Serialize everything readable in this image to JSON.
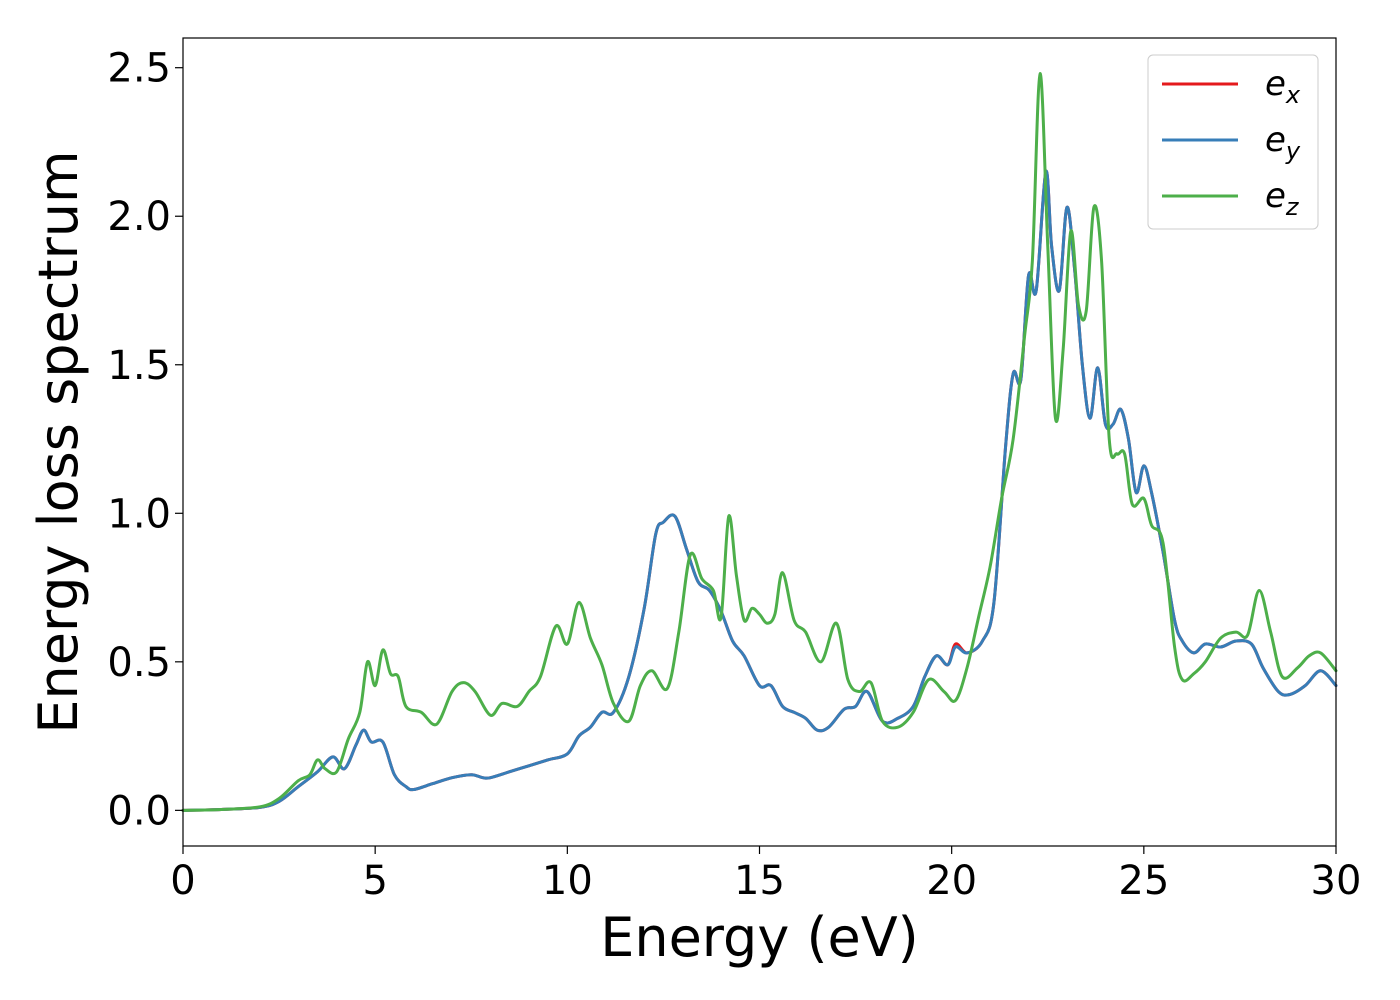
{
  "chart_data": {
    "type": "line",
    "title": "",
    "xlabel": "Energy (eV)",
    "ylabel": "Energy loss spectrum",
    "xlim": [
      0,
      30
    ],
    "ylim": [
      -0.12,
      2.6
    ],
    "xticks": [
      0,
      5,
      10,
      15,
      20,
      25,
      30
    ],
    "xtick_labels": [
      "0",
      "5",
      "10",
      "15",
      "20",
      "25",
      "30"
    ],
    "yticks": [
      0.0,
      0.5,
      1.0,
      1.5,
      2.0,
      2.5
    ],
    "ytick_labels": [
      "0.0",
      "0.5",
      "1.0",
      "1.5",
      "2.0",
      "2.5"
    ],
    "grid": false,
    "legend_position": "top-right",
    "series": [
      {
        "name": "e",
        "subscript": "x",
        "color": "#e41a1c",
        "x": [
          0,
          1,
          2,
          2.5,
          3,
          3.5,
          3.9,
          4.2,
          4.5,
          4.7,
          4.9,
          5.2,
          5.5,
          5.8,
          6.0,
          6.5,
          7.0,
          7.5,
          7.8,
          8.0,
          8.5,
          9.0,
          9.5,
          10.0,
          10.3,
          10.6,
          10.9,
          11.2,
          11.6,
          12.0,
          12.3,
          12.5,
          12.8,
          13.1,
          13.4,
          13.7,
          14.0,
          14.3,
          14.6,
          15.0,
          15.3,
          15.6,
          15.9,
          16.2,
          16.5,
          16.8,
          17.2,
          17.5,
          17.8,
          18.2,
          18.6,
          19.0,
          19.3,
          19.6,
          19.9,
          20.1,
          20.4,
          20.8,
          21.1,
          21.4,
          21.6,
          21.8,
          22.0,
          22.2,
          22.45,
          22.6,
          22.8,
          23.0,
          23.2,
          23.4,
          23.6,
          23.8,
          24.0,
          24.2,
          24.4,
          24.6,
          24.8,
          25.0,
          25.2,
          25.5,
          25.8,
          26.0,
          26.3,
          26.6,
          27.0,
          27.4,
          27.8,
          28.1,
          28.5,
          28.8,
          29.2,
          29.6,
          30.0
        ],
        "y": [
          0.0,
          0.003,
          0.01,
          0.03,
          0.08,
          0.13,
          0.18,
          0.14,
          0.22,
          0.27,
          0.23,
          0.23,
          0.12,
          0.08,
          0.07,
          0.09,
          0.11,
          0.12,
          0.11,
          0.11,
          0.13,
          0.15,
          0.17,
          0.19,
          0.25,
          0.28,
          0.33,
          0.33,
          0.45,
          0.68,
          0.93,
          0.97,
          0.99,
          0.88,
          0.77,
          0.74,
          0.67,
          0.57,
          0.52,
          0.42,
          0.42,
          0.35,
          0.33,
          0.31,
          0.27,
          0.28,
          0.34,
          0.35,
          0.4,
          0.3,
          0.31,
          0.35,
          0.45,
          0.52,
          0.49,
          0.56,
          0.53,
          0.57,
          0.7,
          1.22,
          1.47,
          1.45,
          1.8,
          1.75,
          2.15,
          1.9,
          1.75,
          2.03,
          1.82,
          1.5,
          1.32,
          1.49,
          1.3,
          1.3,
          1.35,
          1.25,
          1.07,
          1.16,
          1.07,
          0.87,
          0.64,
          0.57,
          0.53,
          0.56,
          0.55,
          0.57,
          0.56,
          0.48,
          0.4,
          0.39,
          0.42,
          0.47,
          0.42
        ]
      },
      {
        "name": "e",
        "subscript": "y",
        "color": "#377eb8",
        "x": [
          0,
          1,
          2,
          2.5,
          3,
          3.5,
          3.9,
          4.2,
          4.5,
          4.7,
          4.9,
          5.2,
          5.5,
          5.8,
          6.0,
          6.5,
          7.0,
          7.5,
          7.8,
          8.0,
          8.5,
          9.0,
          9.5,
          10.0,
          10.3,
          10.6,
          10.9,
          11.2,
          11.6,
          12.0,
          12.3,
          12.5,
          12.8,
          13.1,
          13.4,
          13.7,
          14.0,
          14.3,
          14.6,
          15.0,
          15.3,
          15.6,
          15.9,
          16.2,
          16.5,
          16.8,
          17.2,
          17.5,
          17.8,
          18.2,
          18.6,
          19.0,
          19.3,
          19.6,
          19.9,
          20.1,
          20.4,
          20.8,
          21.1,
          21.4,
          21.6,
          21.8,
          22.0,
          22.2,
          22.45,
          22.6,
          22.8,
          23.0,
          23.2,
          23.4,
          23.6,
          23.8,
          24.0,
          24.2,
          24.4,
          24.6,
          24.8,
          25.0,
          25.2,
          25.5,
          25.8,
          26.0,
          26.3,
          26.6,
          27.0,
          27.4,
          27.8,
          28.1,
          28.5,
          28.8,
          29.2,
          29.6,
          30.0
        ],
        "y": [
          0.0,
          0.003,
          0.01,
          0.03,
          0.08,
          0.13,
          0.18,
          0.14,
          0.22,
          0.27,
          0.23,
          0.23,
          0.12,
          0.08,
          0.07,
          0.09,
          0.11,
          0.12,
          0.11,
          0.11,
          0.13,
          0.15,
          0.17,
          0.19,
          0.25,
          0.28,
          0.33,
          0.33,
          0.45,
          0.68,
          0.93,
          0.97,
          0.99,
          0.88,
          0.77,
          0.74,
          0.67,
          0.57,
          0.52,
          0.42,
          0.42,
          0.35,
          0.33,
          0.31,
          0.27,
          0.28,
          0.34,
          0.35,
          0.4,
          0.3,
          0.31,
          0.35,
          0.45,
          0.52,
          0.49,
          0.55,
          0.53,
          0.57,
          0.7,
          1.22,
          1.47,
          1.45,
          1.8,
          1.75,
          2.15,
          1.9,
          1.75,
          2.03,
          1.82,
          1.5,
          1.32,
          1.49,
          1.3,
          1.3,
          1.35,
          1.25,
          1.07,
          1.16,
          1.07,
          0.87,
          0.64,
          0.57,
          0.53,
          0.56,
          0.55,
          0.57,
          0.56,
          0.48,
          0.4,
          0.39,
          0.42,
          0.47,
          0.42
        ]
      },
      {
        "name": "e",
        "subscript": "z",
        "color": "#4daf4a",
        "x": [
          0,
          1,
          2,
          2.5,
          3.0,
          3.3,
          3.5,
          3.7,
          4.0,
          4.3,
          4.6,
          4.8,
          5.0,
          5.2,
          5.4,
          5.6,
          5.8,
          6.2,
          6.6,
          7.0,
          7.3,
          7.6,
          8.0,
          8.3,
          8.7,
          9.0,
          9.3,
          9.7,
          10.0,
          10.3,
          10.6,
          10.9,
          11.2,
          11.6,
          11.9,
          12.2,
          12.6,
          12.9,
          13.2,
          13.5,
          13.8,
          14.0,
          14.2,
          14.4,
          14.6,
          14.8,
          15.0,
          15.2,
          15.4,
          15.6,
          15.9,
          16.2,
          16.6,
          17.0,
          17.3,
          17.6,
          17.9,
          18.2,
          18.6,
          19.0,
          19.4,
          19.8,
          20.1,
          20.4,
          20.7,
          21.0,
          21.3,
          21.6,
          21.9,
          22.1,
          22.3,
          22.5,
          22.7,
          22.9,
          23.1,
          23.3,
          23.5,
          23.7,
          23.9,
          24.1,
          24.3,
          24.5,
          24.7,
          25.0,
          25.2,
          25.5,
          25.8,
          26.0,
          26.3,
          26.6,
          27.0,
          27.4,
          27.7,
          28.0,
          28.3,
          28.6,
          29.0,
          29.3,
          29.6,
          30.0
        ],
        "y": [
          0.0,
          0.003,
          0.012,
          0.04,
          0.1,
          0.12,
          0.17,
          0.14,
          0.13,
          0.24,
          0.33,
          0.5,
          0.42,
          0.54,
          0.46,
          0.45,
          0.35,
          0.33,
          0.29,
          0.4,
          0.43,
          0.4,
          0.32,
          0.36,
          0.35,
          0.4,
          0.45,
          0.62,
          0.56,
          0.7,
          0.58,
          0.49,
          0.36,
          0.3,
          0.42,
          0.47,
          0.41,
          0.6,
          0.86,
          0.78,
          0.74,
          0.65,
          0.99,
          0.79,
          0.64,
          0.68,
          0.66,
          0.63,
          0.66,
          0.8,
          0.64,
          0.6,
          0.5,
          0.63,
          0.44,
          0.4,
          0.43,
          0.3,
          0.28,
          0.33,
          0.44,
          0.4,
          0.37,
          0.48,
          0.65,
          0.82,
          1.05,
          1.25,
          1.6,
          1.85,
          2.48,
          1.9,
          1.32,
          1.55,
          1.95,
          1.7,
          1.68,
          2.03,
          1.85,
          1.25,
          1.2,
          1.2,
          1.03,
          1.05,
          0.96,
          0.9,
          0.55,
          0.44,
          0.46,
          0.5,
          0.58,
          0.6,
          0.59,
          0.74,
          0.6,
          0.45,
          0.48,
          0.52,
          0.53,
          0.47
        ]
      }
    ]
  }
}
